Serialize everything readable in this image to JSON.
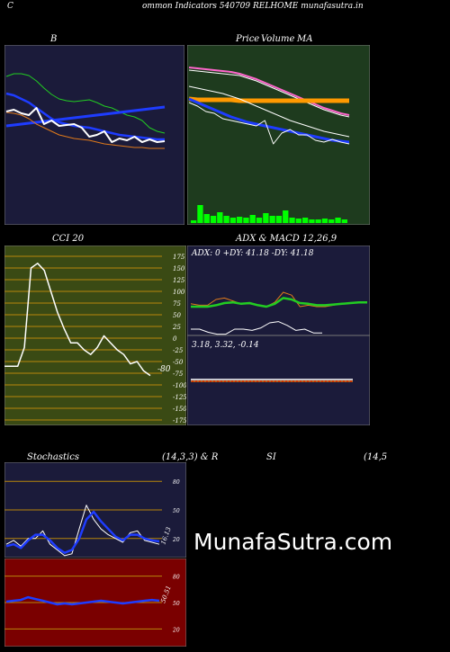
{
  "header": {
    "corner_left": "C",
    "title": "ommon  Indicators 540709 RELHOME munafasutra.in"
  },
  "colors": {
    "navy": "#1b1b3a",
    "dark_green": "#1e3b1e",
    "olive": "#3a4a14",
    "maroon": "#7a0000",
    "gold_line": "#b8860b",
    "blue": "#1e3cff",
    "green_line": "#22cc22",
    "orange": "#e07a1a"
  },
  "watermark": "MunafaSutra.com",
  "chart_data": [
    {
      "id": "bollinger",
      "type": "line",
      "title": "B",
      "series": [
        {
          "values": [
            165,
            168,
            168,
            166,
            160,
            152,
            145,
            140,
            138,
            137,
            138,
            139,
            136,
            132,
            130,
            126,
            122,
            120,
            116,
            108,
            104,
            102
          ]
        },
        {
          "values": [
            110,
            111,
            112,
            113,
            114,
            115,
            116,
            117,
            118,
            119,
            120,
            121,
            122,
            123,
            124,
            125,
            126,
            127,
            128,
            129,
            130,
            131
          ]
        },
        {
          "values": [
            146,
            144,
            140,
            136,
            130,
            124,
            118,
            114,
            112,
            110,
            109,
            108,
            106,
            104,
            102,
            100,
            99,
            98,
            97,
            96,
            95,
            95
          ]
        },
        {
          "values": [
            125,
            124,
            122,
            118,
            112,
            108,
            104,
            100,
            98,
            96,
            95,
            94,
            92,
            90,
            89,
            88,
            87,
            86,
            86,
            85,
            85,
            85
          ]
        },
        {
          "values": [
            126,
            128,
            124,
            122,
            130,
            112,
            116,
            110,
            111,
            112,
            108,
            98,
            100,
            104,
            92,
            96,
            94,
            98,
            92,
            95,
            92,
            93
          ]
        }
      ]
    },
    {
      "id": "price_ma",
      "type": "line",
      "title_parts": [
        "Price",
        "Volume",
        "MA"
      ],
      "series": [
        {
          "values": [
            175,
            174,
            173,
            172,
            171,
            170,
            168,
            165,
            162,
            158,
            154,
            150,
            146,
            142,
            138,
            134,
            130,
            127,
            124,
            122
          ]
        },
        {
          "values": [
            172,
            171,
            170,
            169,
            168,
            167,
            166,
            163,
            160,
            156,
            152,
            148,
            144,
            140,
            136,
            132,
            128,
            125,
            122,
            120
          ]
        },
        {
          "values": [
            140,
            139,
            139,
            139,
            139,
            139,
            138,
            138,
            138,
            138,
            138,
            138,
            138,
            138,
            138,
            138,
            138,
            138,
            138,
            138
          ]
        },
        {
          "values": [
            154,
            152,
            150,
            148,
            146,
            143,
            140,
            136,
            132,
            128,
            124,
            120,
            116,
            113,
            110,
            107,
            104,
            102,
            100,
            98
          ]
        },
        {
          "values": [
            140,
            136,
            132,
            128,
            124,
            120,
            117,
            114,
            112,
            110,
            108,
            106,
            104,
            102,
            100,
            98,
            96,
            94,
            93,
            92
          ]
        },
        {
          "values": [
            136,
            132,
            126,
            124,
            118,
            116,
            114,
            112,
            110,
            116,
            90,
            102,
            106,
            100,
            100,
            94,
            92,
            95,
            92,
            90
          ]
        }
      ],
      "volume": [
        3,
        20,
        10,
        8,
        12,
        8,
        6,
        7,
        6,
        9,
        6,
        11,
        8,
        8,
        14,
        6,
        5,
        6,
        4,
        4,
        5,
        4,
        6,
        4
      ]
    },
    {
      "id": "cci",
      "type": "line",
      "title": "CCI 20",
      "last_value": "-80",
      "ylim": [
        -175,
        175
      ],
      "y_ticks": [
        175,
        150,
        125,
        100,
        75,
        50,
        25,
        0,
        -25,
        -50,
        -75,
        -100,
        -125,
        -150,
        -175
      ],
      "y_tick_labels": [
        "175",
        "150",
        "125",
        "100",
        "75",
        "50",
        "25",
        "0",
        "-25",
        "-50",
        "-75",
        "-100",
        "-125",
        "-150",
        "-175"
      ],
      "values": [
        -60,
        -60,
        -60,
        -20,
        150,
        160,
        145,
        100,
        55,
        20,
        -10,
        -10,
        -25,
        -35,
        -20,
        5,
        -10,
        -25,
        -35,
        -55,
        -50,
        -70,
        -80
      ]
    },
    {
      "id": "adx",
      "type": "line",
      "title": "ADX  & MACD 12,26,9",
      "readout": "ADX: 0   +DY: 41.18  -DY: 41.18",
      "series": [
        {
          "values": [
            40,
            40,
            40,
            42,
            45,
            46,
            44,
            45,
            42,
            40,
            44,
            52,
            50,
            45,
            44,
            42,
            42,
            43,
            44,
            45,
            46,
            46
          ]
        },
        {
          "values": [
            44,
            42,
            42,
            50,
            52,
            48,
            44,
            44,
            42,
            40,
            46,
            60,
            56,
            40,
            42,
            40,
            40,
            42,
            44,
            45,
            46,
            45
          ]
        }
      ],
      "lower": [
        10,
        10,
        5,
        2,
        2,
        10,
        10,
        8,
        12,
        20,
        22,
        16,
        8,
        10,
        4,
        4
      ]
    },
    {
      "id": "macd",
      "type": "line",
      "readout": "3.18,  3.32,  -0.14"
    },
    {
      "id": "stochastics",
      "type": "line",
      "title_parts": [
        "Stochastics",
        "(14,3,3) & R",
        "SI",
        "(14,5"
      ],
      "last_value": "16.13",
      "ylim": [
        0,
        100
      ],
      "y_ticks": [
        80,
        50,
        20
      ],
      "y_tick_labels": [
        "80",
        "50",
        "20"
      ],
      "series": [
        {
          "values": [
            12,
            14,
            10,
            18,
            24,
            24,
            18,
            10,
            5,
            8,
            20,
            40,
            48,
            38,
            30,
            22,
            18,
            24,
            24,
            20,
            18,
            17
          ]
        },
        {
          "values": [
            14,
            18,
            12,
            20,
            20,
            28,
            14,
            8,
            2,
            4,
            30,
            55,
            40,
            30,
            24,
            20,
            16,
            26,
            28,
            18,
            16,
            14
          ]
        }
      ]
    },
    {
      "id": "rsi",
      "type": "line",
      "last_value": "50.51",
      "ylim": [
        0,
        100
      ],
      "y_ticks": [
        80,
        50,
        20
      ],
      "y_tick_labels": [
        "80",
        "50",
        "20"
      ],
      "values": [
        51,
        52,
        53,
        56,
        54,
        52,
        50,
        48,
        49,
        48,
        49,
        50,
        51,
        52,
        51,
        50,
        49,
        50,
        51,
        52,
        53,
        52
      ]
    }
  ]
}
